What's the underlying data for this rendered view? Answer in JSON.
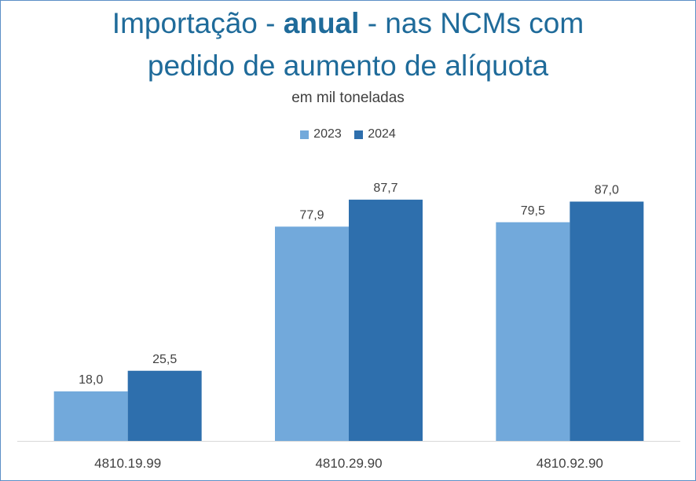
{
  "chart_data": {
    "type": "bar",
    "title_parts": [
      "Importação - ",
      "anual",
      " - nas NCMs com",
      "pedido de aumento de alíquota"
    ],
    "subtitle": "em mil toneladas",
    "categories": [
      "4810.19.99",
      "4810.29.90",
      "4810.92.90"
    ],
    "series": [
      {
        "name": "2023",
        "values": [
          18.0,
          77.9,
          79.5
        ],
        "labels": [
          "18,0",
          "77,9",
          "79,5"
        ],
        "color": "#72a9db"
      },
      {
        "name": "2024",
        "values": [
          25.5,
          87.7,
          87.0
        ],
        "labels": [
          "25,5",
          "87,7",
          "87,0"
        ],
        "color": "#2e6fad"
      }
    ],
    "ylim": [
      0,
      100
    ],
    "grid": false,
    "legend_position": "top-center"
  },
  "colors": {
    "title": "#1f6b9a",
    "frame": "#5b8fc7",
    "axis": "#d9d9d9"
  }
}
